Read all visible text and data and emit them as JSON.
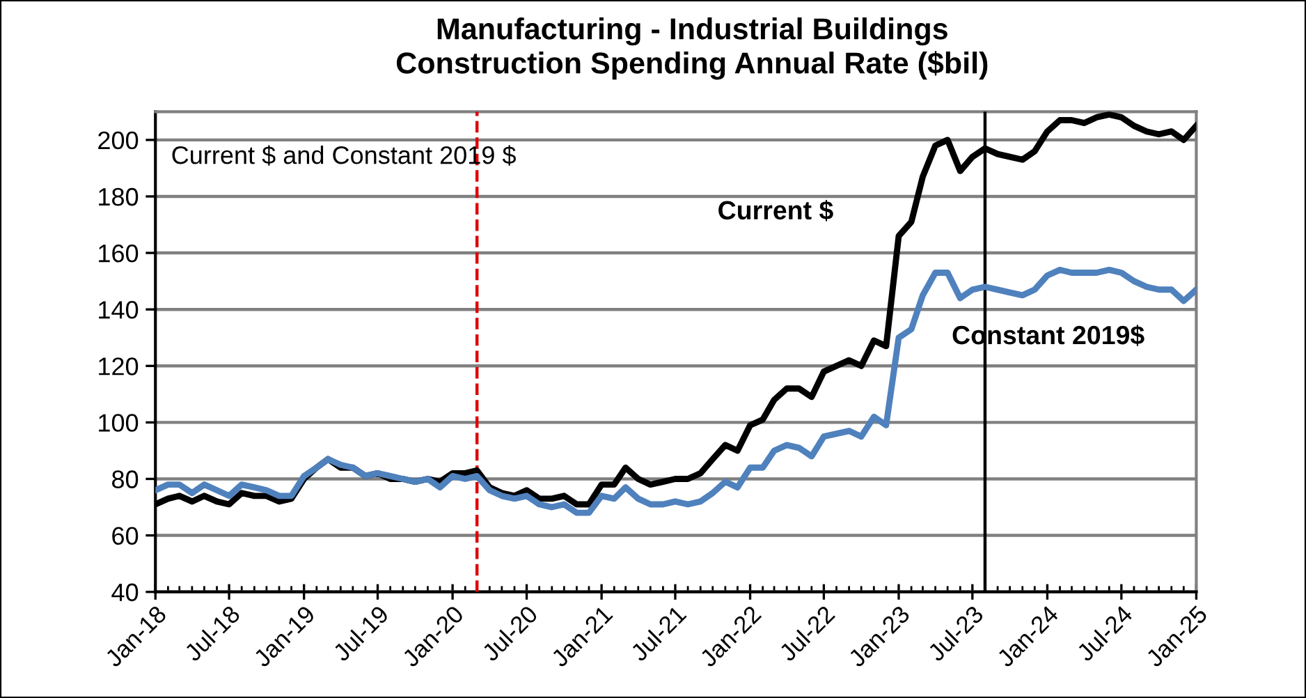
{
  "chart_data": {
    "type": "line",
    "title": "Manufacturing - Industrial Buildings\nConstruction Spending Annual Rate ($bil)",
    "annotations": [
      "Current $ and Constant 2019 $"
    ],
    "x": [
      "2018-01",
      "2018-02",
      "2018-03",
      "2018-04",
      "2018-05",
      "2018-06",
      "2018-07",
      "2018-08",
      "2018-09",
      "2018-10",
      "2018-11",
      "2018-12",
      "2019-01",
      "2019-02",
      "2019-03",
      "2019-04",
      "2019-05",
      "2019-06",
      "2019-07",
      "2019-08",
      "2019-09",
      "2019-10",
      "2019-11",
      "2019-12",
      "2020-01",
      "2020-02",
      "2020-03",
      "2020-04",
      "2020-05",
      "2020-06",
      "2020-07",
      "2020-08",
      "2020-09",
      "2020-10",
      "2020-11",
      "2020-12",
      "2021-01",
      "2021-02",
      "2021-03",
      "2021-04",
      "2021-05",
      "2021-06",
      "2021-07",
      "2021-08",
      "2021-09",
      "2021-10",
      "2021-11",
      "2021-12",
      "2022-01",
      "2022-02",
      "2022-03",
      "2022-04",
      "2022-05",
      "2022-06",
      "2022-07",
      "2022-08",
      "2022-09",
      "2022-10",
      "2022-11",
      "2022-12",
      "2023-01",
      "2023-02",
      "2023-03",
      "2023-04",
      "2023-05",
      "2023-06",
      "2023-07",
      "2023-08",
      "2023-09",
      "2023-10",
      "2023-11",
      "2023-12",
      "2024-01",
      "2024-02",
      "2024-03",
      "2024-04",
      "2024-05",
      "2024-06",
      "2024-07",
      "2024-08",
      "2024-09",
      "2024-10",
      "2024-11",
      "2024-12",
      "2025-01"
    ],
    "series": [
      {
        "name": "Current $",
        "color": "#000000",
        "values": [
          71,
          73,
          74,
          72,
          74,
          72,
          71,
          75,
          74,
          74,
          72,
          73,
          80,
          84,
          87,
          84,
          84,
          81,
          82,
          80,
          80,
          79,
          80,
          79,
          82,
          82,
          83,
          77,
          75,
          74,
          76,
          73,
          73,
          74,
          71,
          71,
          78,
          78,
          84,
          80,
          78,
          79,
          80,
          80,
          82,
          87,
          92,
          90,
          99,
          101,
          108,
          112,
          112,
          109,
          118,
          120,
          122,
          120,
          129,
          127,
          166,
          171,
          187,
          198,
          200,
          189,
          194,
          197,
          195,
          194,
          193,
          196,
          203,
          207,
          207,
          206,
          208,
          209,
          208,
          205,
          203,
          202,
          203,
          200,
          205
        ]
      },
      {
        "name": "Constant 2019$",
        "color": "#4f81bd",
        "values": [
          76,
          78,
          78,
          75,
          78,
          76,
          74,
          78,
          77,
          76,
          74,
          74,
          81,
          84,
          87,
          85,
          84,
          81,
          82,
          81,
          80,
          79,
          80,
          77,
          81,
          80,
          81,
          76,
          74,
          73,
          74,
          71,
          70,
          71,
          68,
          68,
          74,
          73,
          77,
          73,
          71,
          71,
          72,
          71,
          72,
          75,
          79,
          77,
          84,
          84,
          90,
          92,
          91,
          88,
          95,
          96,
          97,
          95,
          102,
          99,
          130,
          133,
          145,
          153,
          153,
          144,
          147,
          148,
          147,
          146,
          145,
          147,
          152,
          154,
          153,
          153,
          153,
          154,
          153,
          150,
          148,
          147,
          147,
          143,
          147
        ]
      }
    ],
    "xlim": [
      "2018-01",
      "2025-01"
    ],
    "xticks": [
      {
        "value": "2018-01",
        "label": "Jan-18"
      },
      {
        "value": "2018-07",
        "label": "Jul-18"
      },
      {
        "value": "2019-01",
        "label": "Jan-19"
      },
      {
        "value": "2019-07",
        "label": "Jul-19"
      },
      {
        "value": "2020-01",
        "label": "Jan-20"
      },
      {
        "value": "2020-07",
        "label": "Jul-20"
      },
      {
        "value": "2021-01",
        "label": "Jan-21"
      },
      {
        "value": "2021-07",
        "label": "Jul-21"
      },
      {
        "value": "2022-01",
        "label": "Jan-22"
      },
      {
        "value": "2022-07",
        "label": "Jul-22"
      },
      {
        "value": "2023-01",
        "label": "Jan-23"
      },
      {
        "value": "2023-07",
        "label": "Jul-23"
      },
      {
        "value": "2024-01",
        "label": "Jan-24"
      },
      {
        "value": "2024-07",
        "label": "Jul-24"
      },
      {
        "value": "2025-01",
        "label": "Jan-25"
      }
    ],
    "ylim": [
      40,
      210
    ],
    "yticks": [
      40,
      60,
      80,
      100,
      120,
      140,
      160,
      180,
      200
    ],
    "ref_lines": [
      {
        "axis": "x",
        "value": "2020-03",
        "color": "#e00000",
        "line_style": "dashed"
      },
      {
        "axis": "x",
        "value": "2023-08",
        "color": "#000000",
        "line_style": "solid"
      }
    ],
    "grid": "y",
    "legend": false,
    "marker": "none",
    "line_style": "solid"
  }
}
